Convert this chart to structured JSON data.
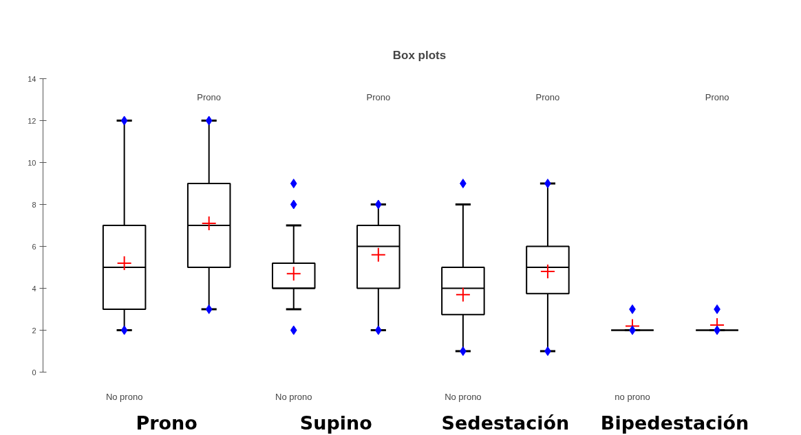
{
  "chart_data": {
    "type": "box",
    "title": "Box plots",
    "categories": [
      "No prono",
      "Prono",
      "No prono",
      "Prono",
      "No prono",
      "Prono",
      "no prono",
      "Prono"
    ],
    "boxes": [
      {
        "low": 2,
        "q1": 3,
        "median": 5,
        "q3": 7,
        "high": 12,
        "mean": 5.2,
        "outliers": [
          2,
          12
        ]
      },
      {
        "low": 3,
        "q1": 5,
        "median": 7,
        "q3": 9,
        "high": 12,
        "mean": 7.1,
        "outliers": [
          3,
          12
        ]
      },
      {
        "low": 3,
        "q1": 4,
        "median": 4,
        "q3": 5.2,
        "high": 7,
        "mean": 4.7,
        "outliers": [
          2,
          8,
          9
        ]
      },
      {
        "low": 2,
        "q1": 4,
        "median": 6,
        "q3": 7,
        "high": 8,
        "mean": 5.6,
        "outliers": [
          2,
          8
        ]
      },
      {
        "low": 1,
        "q1": 2.75,
        "median": 4,
        "q3": 5,
        "high": 8,
        "mean": 3.7,
        "outliers": [
          1,
          9
        ]
      },
      {
        "low": 1,
        "q1": 3.75,
        "median": 5,
        "q3": 6,
        "high": 9,
        "mean": 4.8,
        "outliers": [
          1,
          9
        ]
      },
      {
        "low": 2,
        "q1": 2,
        "median": 2,
        "q3": 2,
        "high": 2,
        "mean": 2.2,
        "outliers": [
          2,
          3
        ]
      },
      {
        "low": 2,
        "q1": 2,
        "median": 2,
        "q3": 2,
        "high": 2,
        "mean": 2.25,
        "outliers": [
          2,
          3
        ]
      }
    ],
    "ylim": [
      0,
      14
    ],
    "yticks": [
      0,
      2,
      4,
      6,
      8,
      10,
      12,
      14
    ],
    "grid": false,
    "annotations": [
      "Prono",
      "Supino",
      "Sedestación",
      "Bipedestación"
    ]
  }
}
